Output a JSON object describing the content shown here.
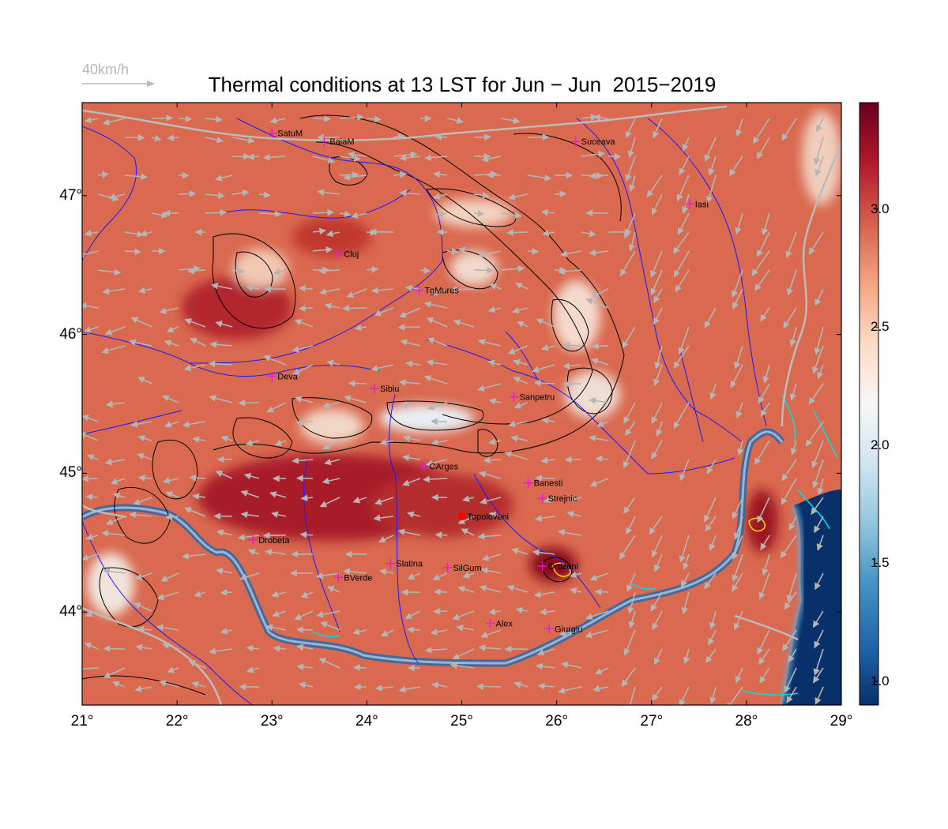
{
  "title": "Thermal conditions at 13 LST for Jun − Jun  2015−2019",
  "wind_scale": {
    "label": "40km/h",
    "color": "#b8b8b8"
  },
  "lon_ticks": [
    "21°",
    "22°",
    "23°",
    "24°",
    "25°",
    "26°",
    "27°",
    "28°",
    "29°"
  ],
  "lat_ticks": [
    "47°",
    "46°",
    "45°",
    "44°"
  ],
  "colorbar": {
    "ticks": [
      "3.0",
      "2.5",
      "2.0",
      "1.5",
      "1.0"
    ],
    "tick_values": [
      3.0,
      2.5,
      2.0,
      1.5,
      1.0
    ],
    "range": [
      0.9,
      3.45
    ],
    "colors": [
      "#08306b",
      "#2166ac",
      "#4393c3",
      "#92c5de",
      "#d1e5f0",
      "#f7f7f7",
      "#fddbc7",
      "#f4a582",
      "#d6604d",
      "#b2182b",
      "#67001f"
    ]
  },
  "map_extent": {
    "lon": [
      21,
      29
    ],
    "lat": [
      43.33,
      47.67
    ]
  },
  "cities": [
    {
      "name": "SatuM",
      "lon": 23.0,
      "lat": 47.45
    },
    {
      "name": "BaiaM",
      "lon": 23.55,
      "lat": 47.39
    },
    {
      "name": "Suceava",
      "lon": 26.2,
      "lat": 47.39
    },
    {
      "name": "Iasi",
      "lon": 27.4,
      "lat": 46.94
    },
    {
      "name": "Cluj",
      "lon": 23.7,
      "lat": 46.58
    },
    {
      "name": "TgMures",
      "lon": 24.55,
      "lat": 46.32
    },
    {
      "name": "Deva",
      "lon": 23.0,
      "lat": 45.7
    },
    {
      "name": "Sibiu",
      "lon": 24.08,
      "lat": 45.61
    },
    {
      "name": "Sanpetru",
      "lon": 25.55,
      "lat": 45.55
    },
    {
      "name": "CArges",
      "lon": 24.6,
      "lat": 45.05
    },
    {
      "name": "Banesti",
      "lon": 25.7,
      "lat": 44.93
    },
    {
      "name": "Strejnic",
      "lon": 25.85,
      "lat": 44.82
    },
    {
      "name": "Topoloveni",
      "lon": 25.0,
      "lat": 44.69
    },
    {
      "name": "Drobeta",
      "lon": 22.8,
      "lat": 44.52
    },
    {
      "name": "Slatina",
      "lon": 24.25,
      "lat": 44.35
    },
    {
      "name": "SilGum",
      "lon": 24.85,
      "lat": 44.32
    },
    {
      "name": "Ordzeni",
      "lon": 25.85,
      "lat": 44.33
    },
    {
      "name": "BVerde",
      "lon": 23.7,
      "lat": 44.25
    },
    {
      "name": "Alex",
      "lon": 25.3,
      "lat": 43.92
    },
    {
      "name": "Giurgiu",
      "lon": 25.92,
      "lat": 43.88
    }
  ],
  "highlight_site": "Topoloveni"
}
